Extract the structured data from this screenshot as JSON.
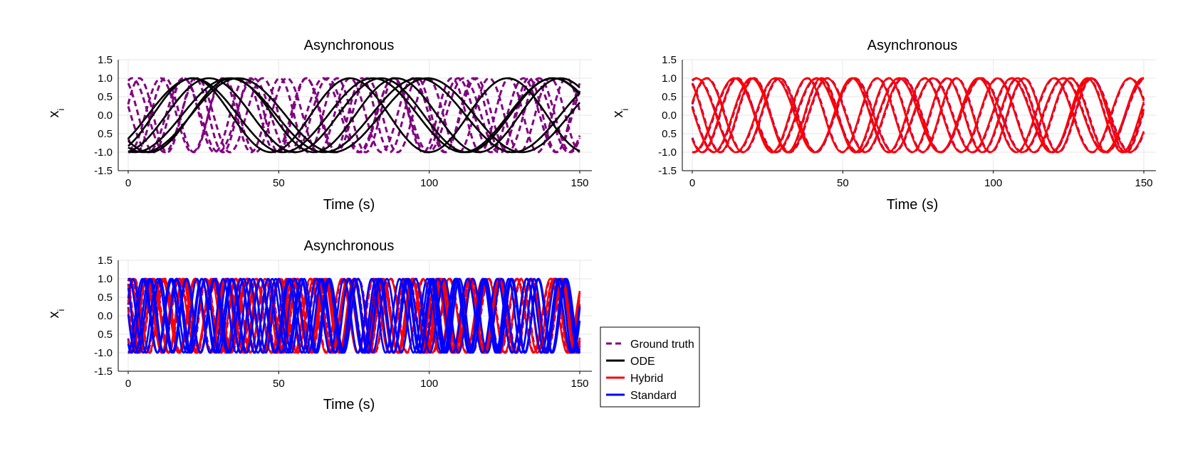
{
  "chart_data": [
    {
      "panel": "top-left",
      "type": "line",
      "title": "Asynchronous",
      "xlabel": "Time (s)",
      "ylabel": "x_i",
      "xlim": [
        0,
        150
      ],
      "ylim": [
        -1.5,
        1.5
      ],
      "xticks": [
        "0",
        "50",
        "100",
        "150"
      ],
      "yticks": [
        "-1.5",
        "-1.0",
        "0.5",
        "0.0",
        "0.5",
        "1.0",
        "1.5"
      ],
      "grid": true,
      "series": [
        {
          "name": "Ground truth",
          "style": "dashed",
          "color": "#800080",
          "count": 6,
          "frequencies": [
            0.34,
            0.29,
            0.31,
            0.27,
            0.33,
            0.3
          ],
          "phases": [
            0.3,
            1.2,
            2.1,
            2.9,
            3.8,
            4.6
          ]
        },
        {
          "name": "ODE",
          "style": "solid",
          "color": "#000000",
          "count": 6,
          "frequencies": [
            0.1,
            0.11,
            0.12,
            0.1,
            0.105,
            0.115
          ],
          "phases": [
            4.5,
            4.9,
            5.3,
            4.2,
            5.6,
            3.9
          ]
        }
      ]
    },
    {
      "panel": "top-right",
      "type": "line",
      "title": "Asynchronous",
      "xlabel": "Time (s)",
      "ylabel": "x_i",
      "xlim": [
        0,
        150
      ],
      "ylim": [
        -1.5,
        1.5
      ],
      "xticks": [
        "0",
        "50",
        "100",
        "150"
      ],
      "yticks": [
        "-1.5",
        "-1.0",
        "0.5",
        "0.0",
        "0.5",
        "1.0",
        "1.5"
      ],
      "grid": true,
      "series": [
        {
          "name": "Ground truth",
          "style": "dashed",
          "color": "#800080",
          "count": 6,
          "frequencies": [
            0.26,
            0.24,
            0.28,
            0.25,
            0.27,
            0.23
          ],
          "phases": [
            0.3,
            1.2,
            2.1,
            2.9,
            3.8,
            4.6
          ]
        },
        {
          "name": "Hybrid",
          "style": "solid",
          "color": "#ff0000",
          "count": 6,
          "frequencies": [
            0.26,
            0.24,
            0.28,
            0.25,
            0.27,
            0.23
          ],
          "phases": [
            0.35,
            1.25,
            2.15,
            2.95,
            3.85,
            4.65
          ]
        }
      ]
    },
    {
      "panel": "bottom-left",
      "type": "line",
      "title": "Asynchronous",
      "xlabel": "Time (s)",
      "ylabel": "x_i",
      "xlim": [
        0,
        150
      ],
      "ylim": [
        -1.5,
        1.5
      ],
      "xticks": [
        "0",
        "50",
        "100",
        "150"
      ],
      "yticks": [
        "-1.5",
        "-1.0",
        "0.5",
        "0.0",
        "0.5",
        "1.0",
        "1.5"
      ],
      "grid": true,
      "series": [
        {
          "name": "Ground truth",
          "style": "dashed",
          "color": "#800080",
          "count": 6,
          "frequencies": [
            0.62,
            0.58,
            0.66,
            0.6,
            0.64,
            0.56
          ],
          "phases": [
            0.3,
            1.2,
            2.1,
            2.9,
            3.8,
            4.6
          ]
        },
        {
          "name": "Hybrid",
          "style": "solid",
          "color": "#ff0000",
          "count": 6,
          "frequencies": [
            0.62,
            0.58,
            0.66,
            0.6,
            0.64,
            0.56
          ],
          "phases": [
            0.4,
            1.3,
            2.2,
            3.0,
            3.9,
            4.7
          ]
        },
        {
          "name": "Standard",
          "style": "solid",
          "color": "#0000ff",
          "count": 6,
          "frequencies": [
            0.7,
            0.66,
            0.74,
            0.68,
            0.72,
            0.64
          ],
          "phases": [
            0.5,
            1.4,
            2.3,
            3.1,
            4.0,
            4.8
          ]
        }
      ]
    }
  ],
  "legend": {
    "placement": "right of bottom-left panel",
    "entries": [
      {
        "label": "Ground truth",
        "color": "#800080",
        "style": "dashed"
      },
      {
        "label": "ODE",
        "color": "#000000",
        "style": "solid"
      },
      {
        "label": "Hybrid",
        "color": "#ff0000",
        "style": "solid"
      },
      {
        "label": "Standard",
        "color": "#0000ff",
        "style": "solid"
      }
    ]
  }
}
